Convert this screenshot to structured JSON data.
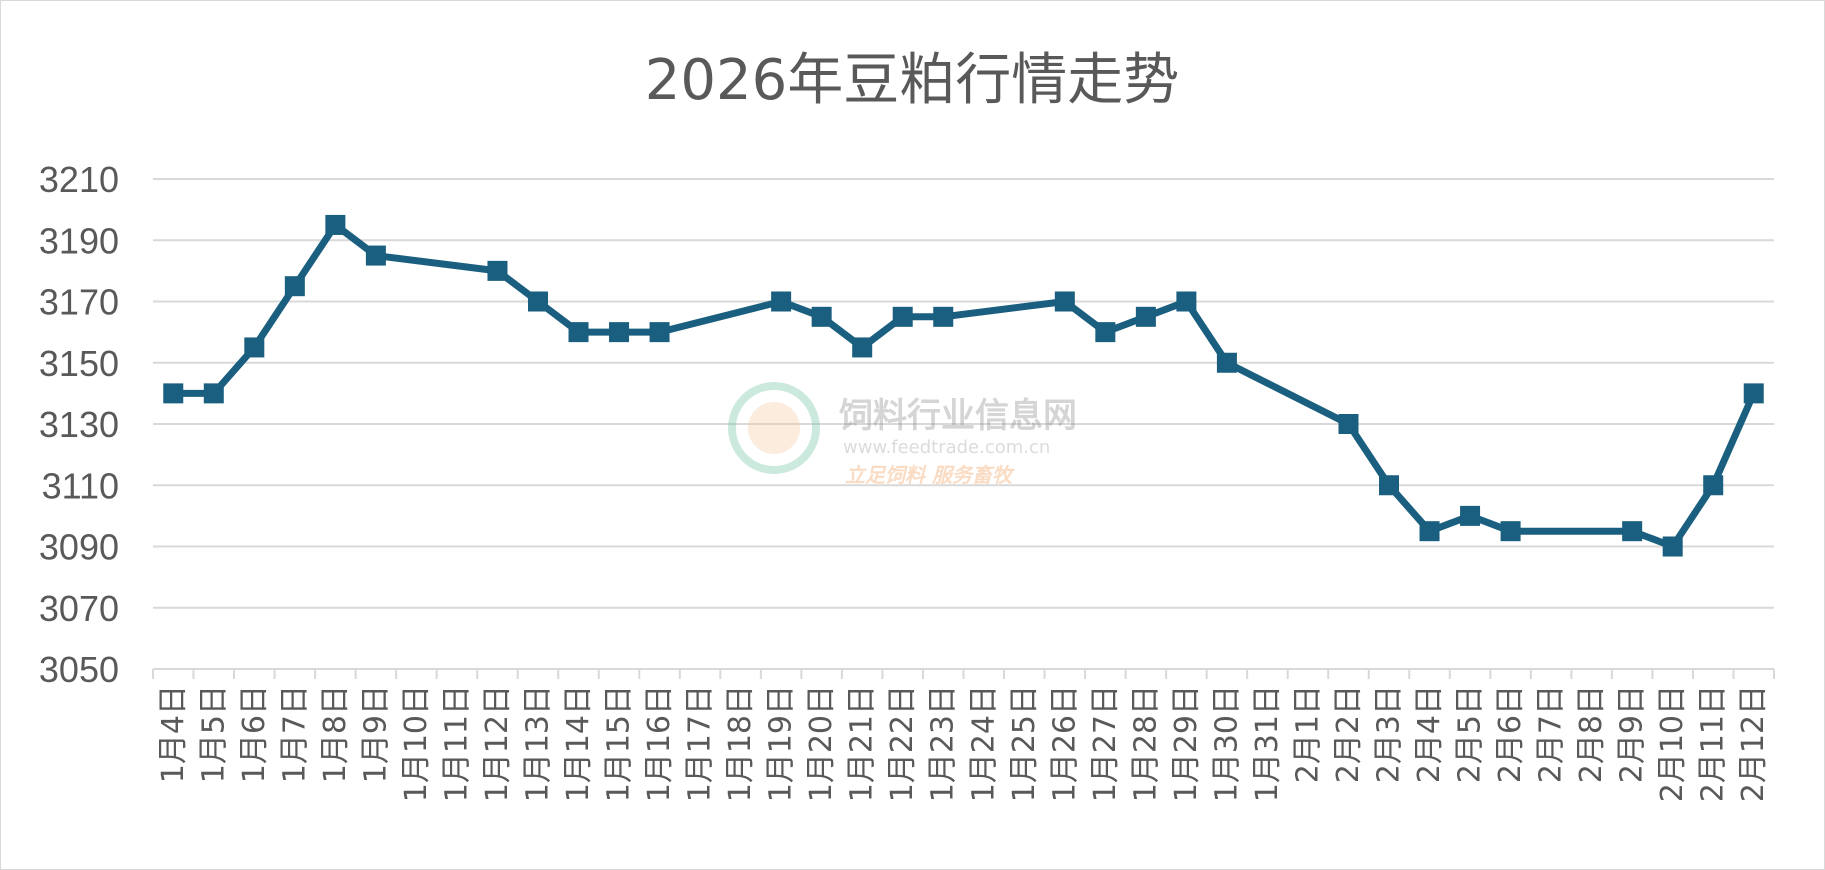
{
  "chart_data": {
    "type": "line",
    "title": "2026年豆粕行情走势",
    "xlabel": "",
    "ylabel": "",
    "ylim": [
      3050,
      3210
    ],
    "yticks": [
      3050,
      3070,
      3090,
      3110,
      3130,
      3150,
      3170,
      3190,
      3210
    ],
    "categories": [
      "1月4日",
      "1月5日",
      "1月6日",
      "1月7日",
      "1月8日",
      "1月9日",
      "1月10日",
      "1月11日",
      "1月12日",
      "1月13日",
      "1月14日",
      "1月15日",
      "1月16日",
      "1月17日",
      "1月18日",
      "1月19日",
      "1月20日",
      "1月21日",
      "1月22日",
      "1月23日",
      "1月24日",
      "1月25日",
      "1月26日",
      "1月27日",
      "1月28日",
      "1月29日",
      "1月30日",
      "1月31日",
      "2月1日",
      "2月2日",
      "2月3日",
      "2月4日",
      "2月5日",
      "2月6日",
      "2月7日",
      "2月8日",
      "2月9日",
      "2月10日",
      "2月11日",
      "2月12日"
    ],
    "series": [
      {
        "values": [
          3140,
          3140,
          3155,
          3175,
          3195,
          3185,
          null,
          null,
          3180,
          3170,
          3160,
          3160,
          3160,
          null,
          null,
          3170,
          3165,
          3155,
          3165,
          3165,
          null,
          null,
          3170,
          3160,
          3165,
          3170,
          3150,
          null,
          null,
          3130,
          3110,
          3095,
          3100,
          3095,
          null,
          null,
          3095,
          3090,
          3110,
          3140
        ],
        "color": "#1a5f7f"
      }
    ],
    "grid": true,
    "legend": "none"
  },
  "watermark": {
    "name": "饲料行业信息网",
    "url": "www.feedtrade.com.cn",
    "slogan": "立足饲料  服务畜牧"
  }
}
